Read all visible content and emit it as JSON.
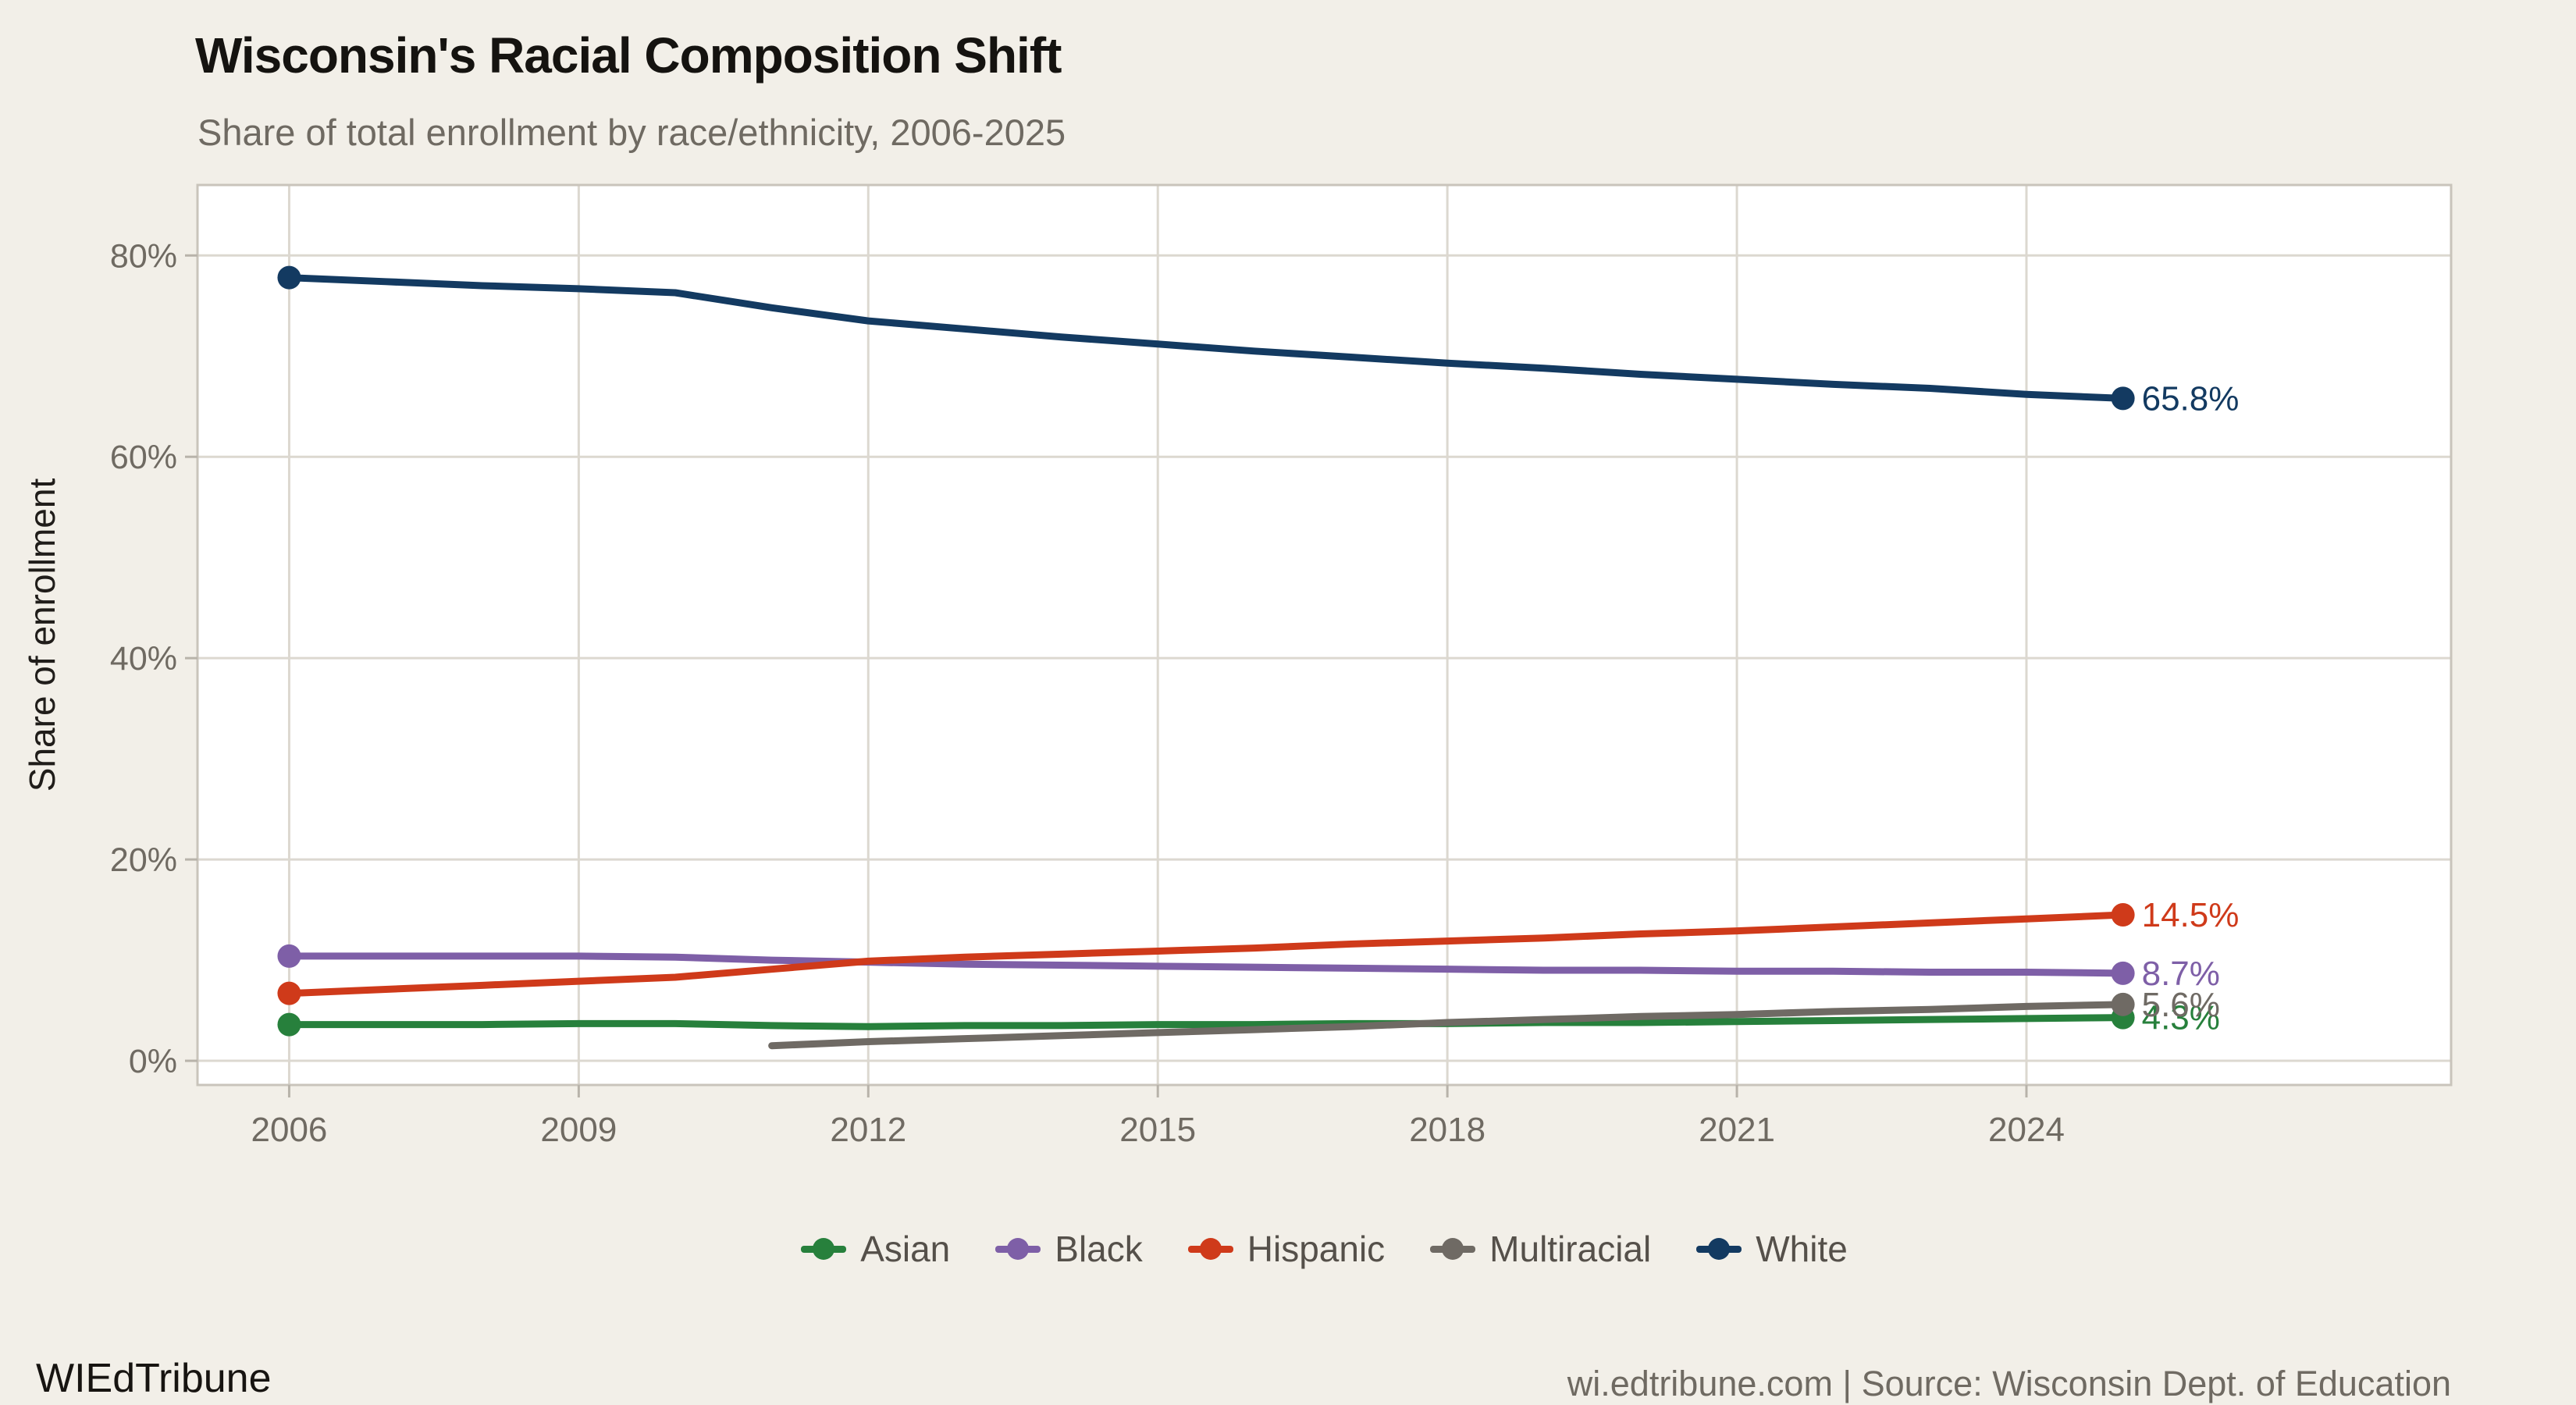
{
  "title": "Wisconsin's Racial Composition Shift",
  "subtitle": "Share of total enrollment by race/ethnicity, 2006-2025",
  "footer": {
    "brand": "WIEdTribune",
    "attribution": "wi.edtribune.com | Source: Wisconsin Dept. of Education"
  },
  "colors": {
    "background": "#f2efe8",
    "panel": "#ffffff",
    "grid": "#dcd8d0",
    "panel_border": "#c9c4bb",
    "tick_mark": "#b8b3aa",
    "axis_text": "#6f6a62",
    "axis_title_text": "#201d1a",
    "legend_text": "#55504a"
  },
  "chart_data": {
    "type": "line",
    "title": "Wisconsin's Racial Composition Shift",
    "subtitle": "Share of total enrollment by race/ethnicity, 2006-2025",
    "xlabel": "",
    "ylabel": "Share of enrollment",
    "x_ticks": [
      2006,
      2009,
      2012,
      2015,
      2018,
      2021,
      2024
    ],
    "x_tick_labels": [
      "2006",
      "2009",
      "2012",
      "2015",
      "2018",
      "2021",
      "2024"
    ],
    "y_ticks": [
      0,
      20,
      40,
      60,
      80
    ],
    "y_tick_labels": [
      "0%",
      "20%",
      "40%",
      "60%",
      "80%"
    ],
    "xlim": [
      2005.05,
      2028.4
    ],
    "ylim": [
      -2.4,
      87.0
    ],
    "grid": true,
    "legend_position": "bottom",
    "series": [
      {
        "name": "Asian",
        "color": "#27803c",
        "start_dot": true,
        "x": [
          2006,
          2007,
          2008,
          2009,
          2010,
          2011,
          2012,
          2013,
          2014,
          2015,
          2016,
          2017,
          2018,
          2019,
          2020,
          2021,
          2022,
          2023,
          2024,
          2025
        ],
        "values": [
          3.6,
          3.6,
          3.6,
          3.7,
          3.7,
          3.5,
          3.4,
          3.5,
          3.5,
          3.6,
          3.6,
          3.7,
          3.7,
          3.8,
          3.8,
          3.9,
          4.0,
          4.1,
          4.2,
          4.3
        ],
        "end_label": "4.3%"
      },
      {
        "name": "Black",
        "color": "#7e5fa7",
        "start_dot": true,
        "x": [
          2006,
          2007,
          2008,
          2009,
          2010,
          2011,
          2012,
          2013,
          2014,
          2015,
          2016,
          2017,
          2018,
          2019,
          2020,
          2021,
          2022,
          2023,
          2024,
          2025
        ],
        "values": [
          10.4,
          10.4,
          10.4,
          10.4,
          10.3,
          10.0,
          9.8,
          9.6,
          9.5,
          9.4,
          9.3,
          9.2,
          9.1,
          9.0,
          9.0,
          8.9,
          8.9,
          8.8,
          8.8,
          8.7
        ],
        "end_label": "8.7%"
      },
      {
        "name": "Hispanic",
        "color": "#cf3a1a",
        "start_dot": true,
        "x": [
          2006,
          2007,
          2008,
          2009,
          2010,
          2011,
          2012,
          2013,
          2014,
          2015,
          2016,
          2017,
          2018,
          2019,
          2020,
          2021,
          2022,
          2023,
          2024,
          2025
        ],
        "values": [
          6.7,
          7.1,
          7.5,
          7.9,
          8.3,
          9.1,
          9.9,
          10.3,
          10.6,
          10.9,
          11.2,
          11.6,
          11.9,
          12.2,
          12.6,
          12.9,
          13.3,
          13.7,
          14.1,
          14.5
        ],
        "end_label": "14.5%"
      },
      {
        "name": "Multiracial",
        "color": "#6f6a64",
        "start_dot": false,
        "x": [
          2011,
          2012,
          2013,
          2014,
          2015,
          2016,
          2017,
          2018,
          2019,
          2020,
          2021,
          2022,
          2023,
          2024,
          2025
        ],
        "values": [
          1.5,
          1.9,
          2.2,
          2.5,
          2.8,
          3.1,
          3.4,
          3.8,
          4.1,
          4.4,
          4.6,
          4.9,
          5.1,
          5.4,
          5.6
        ],
        "end_label": "5.6%"
      },
      {
        "name": "White",
        "color": "#133a61",
        "start_dot": true,
        "x": [
          2006,
          2007,
          2008,
          2009,
          2010,
          2011,
          2012,
          2013,
          2014,
          2015,
          2016,
          2017,
          2018,
          2019,
          2020,
          2021,
          2022,
          2023,
          2024,
          2025
        ],
        "values": [
          77.8,
          77.4,
          77.0,
          76.7,
          76.3,
          74.8,
          73.5,
          72.7,
          71.9,
          71.2,
          70.5,
          69.9,
          69.3,
          68.8,
          68.2,
          67.7,
          67.2,
          66.8,
          66.2,
          65.8
        ],
        "end_label": "65.8%"
      }
    ]
  }
}
